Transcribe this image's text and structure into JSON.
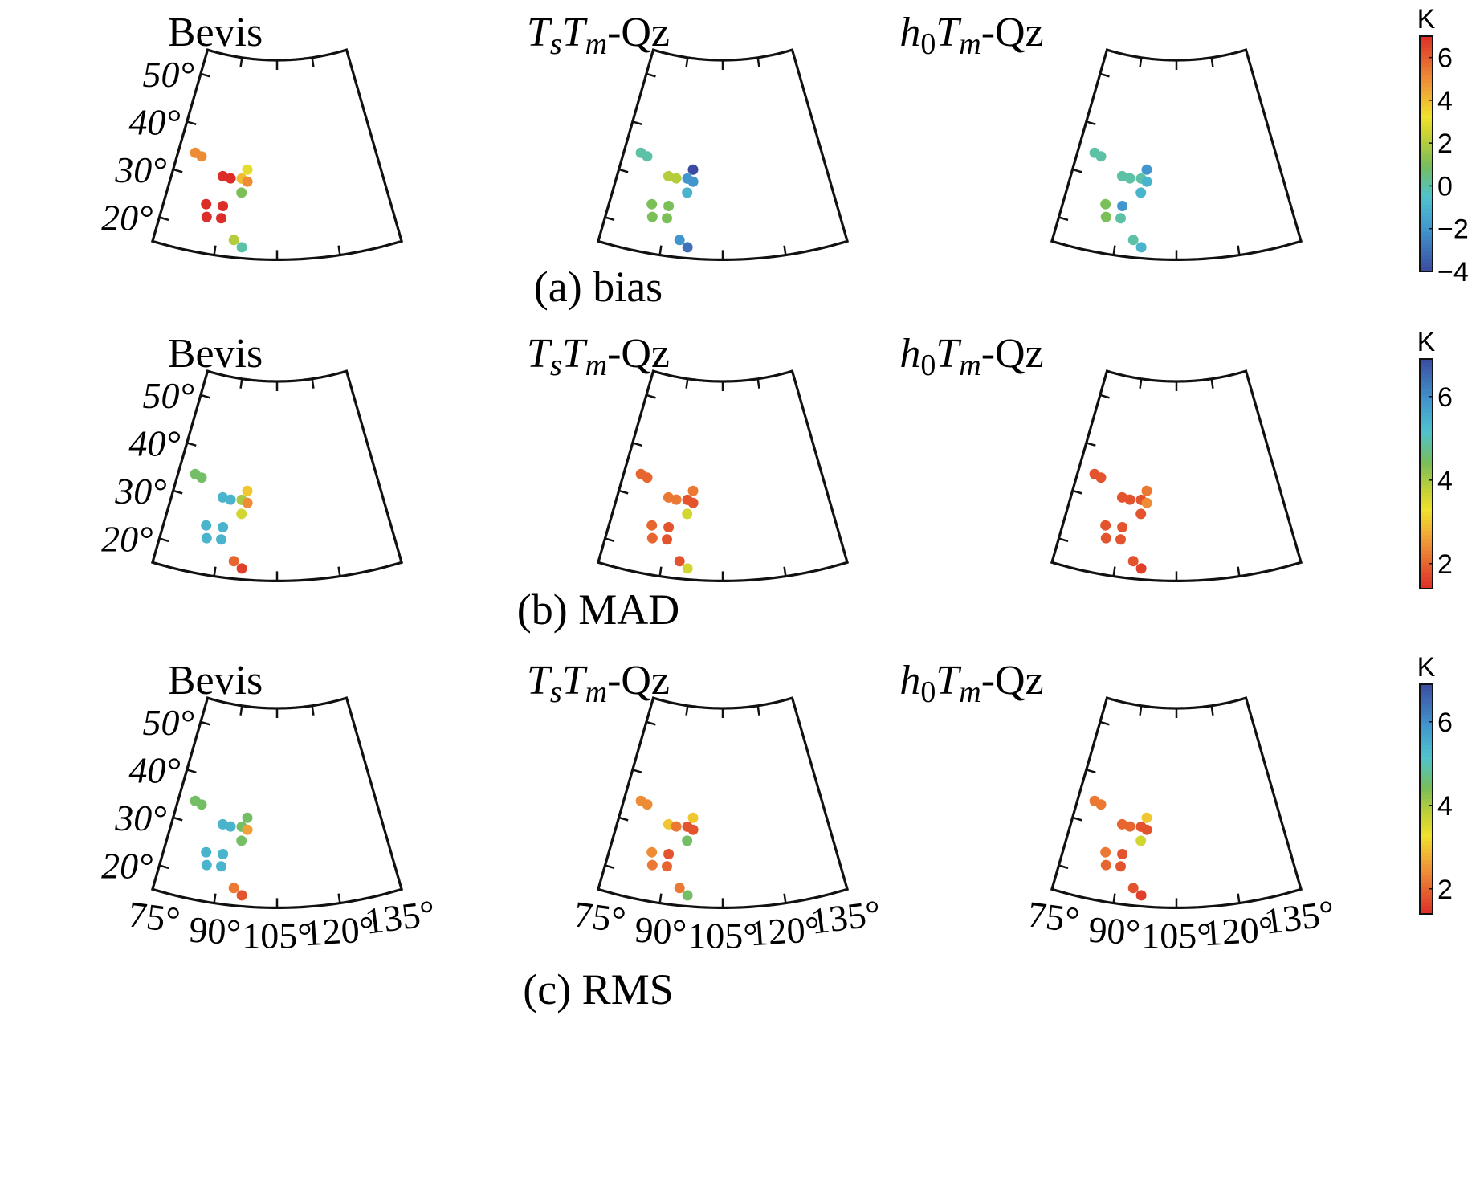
{
  "chart_data": {
    "type": "scatter",
    "map_projection": "conic",
    "lon_ticks": [
      "75°",
      "90°",
      "105°",
      "120°",
      "135°"
    ],
    "lat_ticks": [
      "50°",
      "40°",
      "30°",
      "20°"
    ],
    "lon_range": [
      75,
      135
    ],
    "lat_range": [
      15,
      55
    ],
    "stations": [
      {
        "lon": 80.0,
        "lat": 34.4
      },
      {
        "lon": 82.1,
        "lat": 34.0
      },
      {
        "lon": 89.3,
        "lat": 30.9
      },
      {
        "lon": 91.6,
        "lat": 30.7
      },
      {
        "lon": 94.8,
        "lat": 30.9
      },
      {
        "lon": 96.2,
        "lat": 32.8
      },
      {
        "lon": 96.5,
        "lat": 30.4
      },
      {
        "lon": 95.1,
        "lat": 28.1
      },
      {
        "lon": 86.0,
        "lat": 24.8
      },
      {
        "lon": 86.7,
        "lat": 22.3
      },
      {
        "lon": 90.5,
        "lat": 25.0
      },
      {
        "lon": 90.5,
        "lat": 22.5
      },
      {
        "lon": 94.3,
        "lat": 18.5
      },
      {
        "lon": 96.4,
        "lat": 17.2
      }
    ],
    "panels": [
      {
        "caption": "(a) bias",
        "colorbar": {
          "unit": "K",
          "min": -4,
          "max": 7,
          "ticks": [
            6,
            4,
            2,
            0,
            -2,
            -4
          ],
          "tick_labels": [
            "6",
            "4",
            "2",
            "0",
            "−2",
            "−4"
          ],
          "colormap": "jet"
        },
        "maps": [
          {
            "title": "Bevis",
            "values": [
              5,
              5,
              7,
              7,
              4,
              3,
              5,
              1,
              7,
              7,
              7,
              7,
              2,
              0
            ]
          },
          {
            "title": "TsTm-Qz",
            "values": [
              0,
              0,
              2,
              2,
              -2,
              -4,
              -2,
              -1,
              1,
              1,
              1,
              1,
              -2,
              -3
            ]
          },
          {
            "title": "h0Tm-Qz",
            "values": [
              0,
              0,
              0,
              0,
              0,
              -2,
              -1,
              -1,
              1,
              1,
              -2,
              0,
              0,
              -1
            ]
          }
        ]
      },
      {
        "caption": "(b) MAD",
        "colorbar": {
          "unit": "K",
          "min": 1.4,
          "max": 6.9,
          "ticks": [
            6,
            4,
            2
          ],
          "tick_labels": [
            "6",
            "4",
            "2"
          ],
          "colormap": "jet_r"
        },
        "maps": [
          {
            "title": "Bevis",
            "values": [
              4.5,
              4.5,
              5.4,
              5.4,
              4.0,
              3.0,
              2.4,
              3.6,
              5.4,
              5.4,
              5.4,
              5.4,
              2.0,
              1.6
            ]
          },
          {
            "title": "TsTm-Qz",
            "values": [
              2.0,
              2.0,
              2.2,
              2.2,
              1.8,
              2.2,
              1.8,
              3.6,
              2.0,
              2.0,
              1.8,
              1.8,
              1.8,
              3.6
            ]
          },
          {
            "title": "h0Tm-Qz",
            "values": [
              1.8,
              1.8,
              1.8,
              1.8,
              1.8,
              2.2,
              2.4,
              1.8,
              1.8,
              1.8,
              1.8,
              1.8,
              1.8,
              1.6
            ]
          }
        ]
      },
      {
        "caption": "(c) RMS",
        "colorbar": {
          "unit": "K",
          "min": 1.4,
          "max": 6.9,
          "ticks": [
            6,
            4,
            2
          ],
          "tick_labels": [
            "6",
            "4",
            "2"
          ],
          "colormap": "jet_r"
        },
        "maps": [
          {
            "title": "Bevis",
            "values": [
              4.5,
              4.5,
              5.4,
              5.4,
              4.5,
              4.5,
              2.6,
              4.5,
              5.4,
              5.4,
              5.4,
              5.4,
              2.2,
              1.8
            ]
          },
          {
            "title": "TsTm-Qz",
            "values": [
              2.4,
              2.4,
              3.0,
              2.2,
              1.8,
              3.0,
              1.8,
              4.5,
              2.4,
              2.2,
              1.8,
              2.0,
              2.2,
              4.5
            ]
          },
          {
            "title": "h0Tm-Qz",
            "values": [
              2.2,
              2.2,
              2.0,
              2.0,
              1.8,
              3.0,
              1.8,
              3.6,
              2.2,
              2.0,
              1.8,
              1.8,
              1.8,
              1.6
            ]
          }
        ]
      }
    ]
  }
}
